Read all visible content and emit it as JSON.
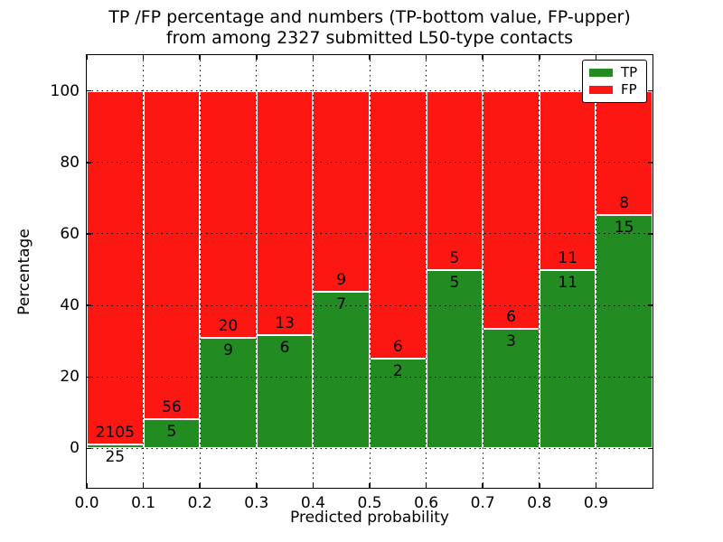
{
  "figure": {
    "title_line1": "TP /FP percentage and numbers (TP-bottom value, FP-upper)",
    "title_line2": "from among 2327 submitted L50-type contacts"
  },
  "chart_data": {
    "type": "bar",
    "subtype": "stacked-percentage-histogram",
    "title": "TP /FP percentage and numbers (TP-bottom value, FP-upper) from among 2327 submitted L50-type contacts",
    "xlabel": "Predicted probability",
    "ylabel": "Percentage",
    "xlim": [
      0.0,
      1.0
    ],
    "ylim": [
      -11,
      110
    ],
    "x_ticks": [
      "0.0",
      "0.1",
      "0.2",
      "0.3",
      "0.4",
      "0.5",
      "0.6",
      "0.7",
      "0.8",
      "0.9"
    ],
    "y_ticks": [
      "0",
      "20",
      "40",
      "60",
      "80",
      "100"
    ],
    "grid": "dotted",
    "total_contacts": 2327,
    "legend": {
      "position": "upper-right",
      "entries": [
        {
          "label": "TP",
          "color": "#228b22"
        },
        {
          "label": "FP",
          "color": "#fc1712"
        }
      ]
    },
    "colors": {
      "tp_bar": "#228b22",
      "fp_bar": "#fc1712",
      "bar_edge": "#ffffff",
      "annotation_text": "#000000"
    },
    "bins": [
      {
        "x_start": 0.0,
        "x_end": 0.1,
        "tp": 25,
        "fp": 2105
      },
      {
        "x_start": 0.1,
        "x_end": 0.2,
        "tp": 5,
        "fp": 56
      },
      {
        "x_start": 0.2,
        "x_end": 0.3,
        "tp": 9,
        "fp": 20
      },
      {
        "x_start": 0.3,
        "x_end": 0.4,
        "tp": 6,
        "fp": 13
      },
      {
        "x_start": 0.4,
        "x_end": 0.5,
        "tp": 7,
        "fp": 9
      },
      {
        "x_start": 0.5,
        "x_end": 0.6,
        "tp": 2,
        "fp": 6
      },
      {
        "x_start": 0.6,
        "x_end": 0.7,
        "tp": 5,
        "fp": 5
      },
      {
        "x_start": 0.7,
        "x_end": 0.8,
        "tp": 3,
        "fp": 6
      },
      {
        "x_start": 0.8,
        "x_end": 0.9,
        "tp": 11,
        "fp": 11
      },
      {
        "x_start": 0.9,
        "x_end": 1.0,
        "tp": 15,
        "fp": 8
      }
    ]
  }
}
